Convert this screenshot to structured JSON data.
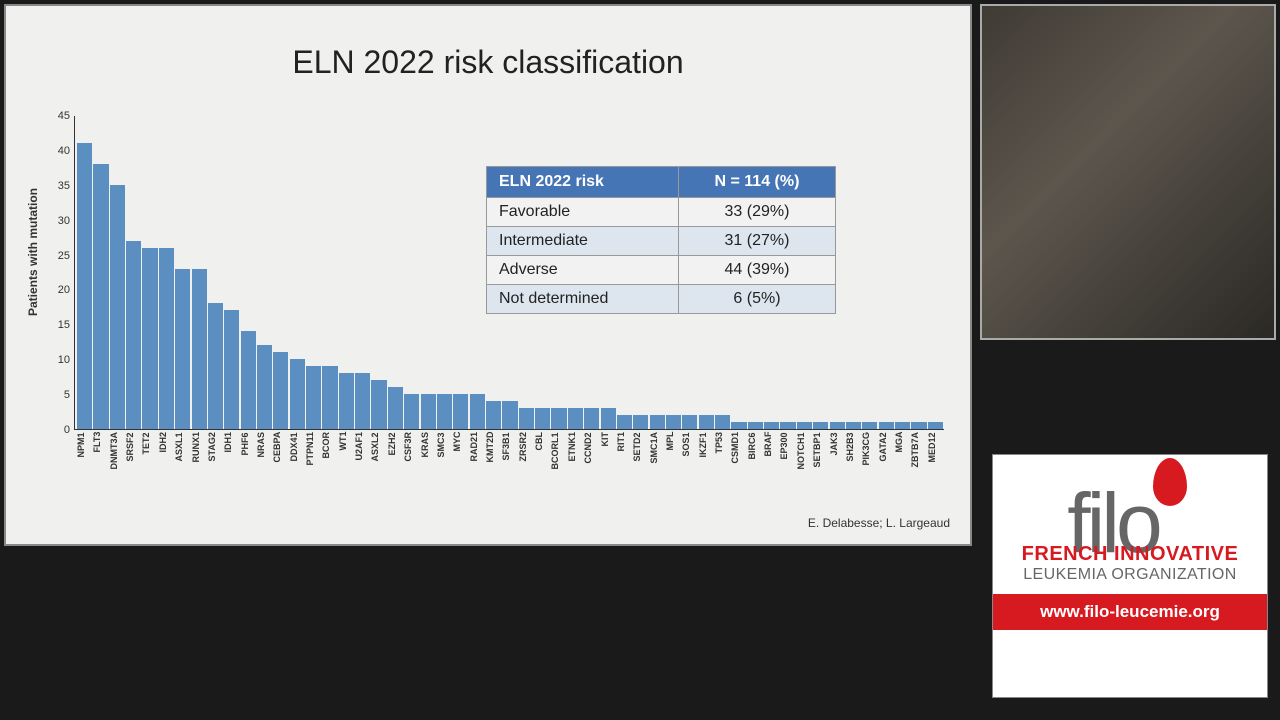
{
  "slide": {
    "title": "ELN 2022 risk classification",
    "credit": "E. Delabesse; L. Largeaud",
    "background_color": "#f0f0ee"
  },
  "chart": {
    "type": "bar",
    "ylabel": "Patients with mutation",
    "ylim": [
      0,
      45
    ],
    "ytick_step": 5,
    "bar_color": "#5b8ec1",
    "axis_color": "#333333",
    "label_fontsize": 9,
    "categories": [
      "NPM1",
      "FLT3",
      "DNMT3A",
      "SRSF2",
      "TET2",
      "IDH2",
      "ASXL1",
      "RUNX1",
      "STAG2",
      "IDH1",
      "PHF6",
      "NRAS",
      "CEBPA",
      "DDX41",
      "PTPN11",
      "BCOR",
      "WT1",
      "U2AF1",
      "ASXL2",
      "EZH2",
      "CSF3R",
      "KRAS",
      "SMC3",
      "MYC",
      "RAD21",
      "KMT2D",
      "SF3B1",
      "ZRSR2",
      "CBL",
      "BCORL1",
      "ETNK1",
      "CCND2",
      "KIT",
      "RIT1",
      "SETD2",
      "SMC1A",
      "MPL",
      "SOS1",
      "IKZF1",
      "TP53",
      "CSMD1",
      "BIRC6",
      "BRAF",
      "EP300",
      "NOTCH1",
      "SETBP1",
      "JAK3",
      "SH2B3",
      "PIK3CG",
      "GATA2",
      "MGA",
      "ZBTB7A",
      "MED12"
    ],
    "values": [
      41,
      38,
      35,
      27,
      26,
      26,
      23,
      23,
      18,
      17,
      14,
      12,
      11,
      10,
      9,
      9,
      8,
      8,
      7,
      6,
      5,
      5,
      5,
      5,
      5,
      4,
      4,
      3,
      3,
      3,
      3,
      3,
      3,
      2,
      2,
      2,
      2,
      2,
      2,
      2,
      1,
      1,
      1,
      1,
      1,
      1,
      1,
      1,
      1,
      1,
      1,
      1,
      1
    ]
  },
  "table": {
    "header_bg": "#4575b4",
    "header_color": "#ffffff",
    "row_even_bg": "#dde5ee",
    "row_odd_bg": "#f2f2f2",
    "columns": [
      "ELN 2022 risk",
      "N = 114 (%)"
    ],
    "rows": [
      [
        "Favorable",
        "33 (29%)"
      ],
      [
        "Intermediate",
        "31 (27%)"
      ],
      [
        "Adverse",
        "44 (39%)"
      ],
      [
        "Not determined",
        "6 (5%)"
      ]
    ]
  },
  "logo": {
    "text": "filo",
    "sub1": "FRENCH INNOVATIVE",
    "sub2": "LEUKEMIA ORGANIZATION",
    "url": "www.filo-leucemie.org",
    "accent_color": "#d71920"
  }
}
